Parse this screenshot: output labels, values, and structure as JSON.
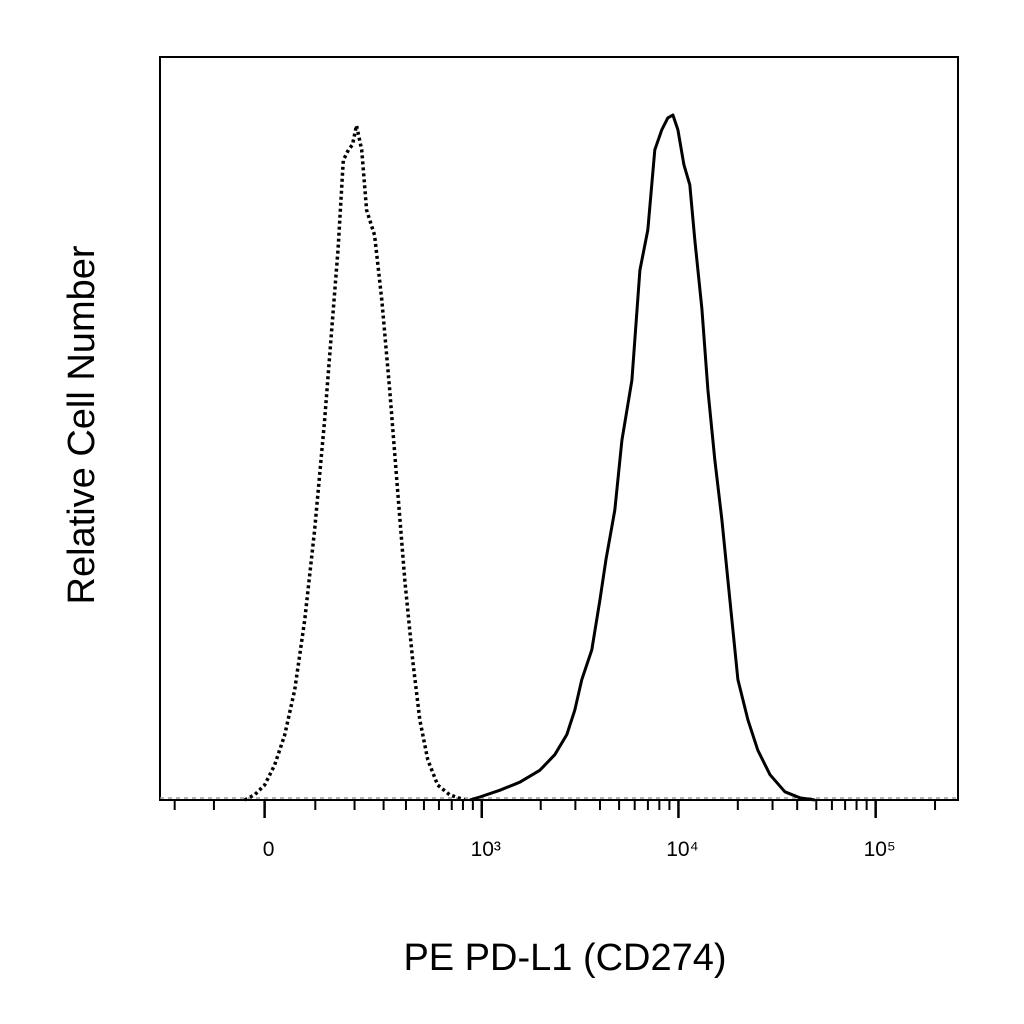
{
  "chart_data": {
    "type": "line",
    "xlabel": "PE PD-L1 (CD274)",
    "ylabel": "Relative Cell Number",
    "xscale": "asinh",
    "xscale_width": 159.5,
    "xlim": [
      -247,
      261500
    ],
    "ylim": [
      0,
      100
    ],
    "xticks": [
      {
        "value": 0,
        "label": "0"
      },
      {
        "value": 1000,
        "label": "10³"
      },
      {
        "value": 10000,
        "label": "10⁴"
      },
      {
        "value": 100000,
        "label": "10⁵"
      }
    ],
    "xminor_ticks": [
      -200,
      -100,
      100,
      200,
      300,
      400,
      500,
      600,
      700,
      800,
      900,
      2000,
      3000,
      4000,
      5000,
      6000,
      7000,
      8000,
      9000,
      20000,
      30000,
      40000,
      50000,
      60000,
      70000,
      80000,
      90000,
      200000
    ],
    "series": [
      {
        "color": "#000000",
        "style": "dotted",
        "x": [
          -37.6,
          -18.7,
          0,
          18.7,
          37.6,
          57.1,
          77.3,
          98.5,
          121,
          138,
          154,
          168,
          182,
          194,
          206,
          222,
          238,
          266,
          293,
          325,
          360,
          394,
          435,
          475,
          524,
          591,
          683,
          817
        ],
        "values": [
          0,
          0.7,
          2.0,
          4.7,
          8.7,
          14.8,
          24.2,
          36.3,
          51.1,
          63.3,
          74.0,
          86.1,
          87.5,
          88.2,
          90.8,
          87.5,
          79.4,
          76.0,
          67.3,
          55.2,
          41.7,
          29.6,
          18.8,
          10.8,
          5.4,
          2.0,
          0.7,
          0
        ]
      },
      {
        "color": "#000000",
        "style": "solid",
        "x": [
          868,
          977,
          1236,
          1565,
          1978,
          2357,
          2713,
          2978,
          3233,
          3635,
          3994,
          4284,
          4758,
          5165,
          5804,
          6372,
          6992,
          7591,
          8238,
          8835,
          9369,
          9937,
          10655,
          11420,
          12106,
          13143,
          14100,
          15296,
          16604,
          18231,
          20017,
          22505,
          25265,
          29109,
          34675,
          41311,
          49206
        ],
        "values": [
          0,
          0.4,
          1.3,
          2.4,
          4.0,
          6.1,
          8.8,
          12.1,
          16.2,
          20.2,
          26.9,
          32.3,
          39.0,
          48.4,
          56.5,
          71.3,
          76.7,
          87.5,
          90.2,
          91.8,
          92.2,
          90.2,
          85.5,
          82.8,
          75.4,
          66.1,
          55.2,
          45.8,
          37.7,
          26.9,
          16.2,
          10.8,
          6.7,
          3.4,
          1.1,
          0.3,
          0
        ]
      }
    ]
  }
}
